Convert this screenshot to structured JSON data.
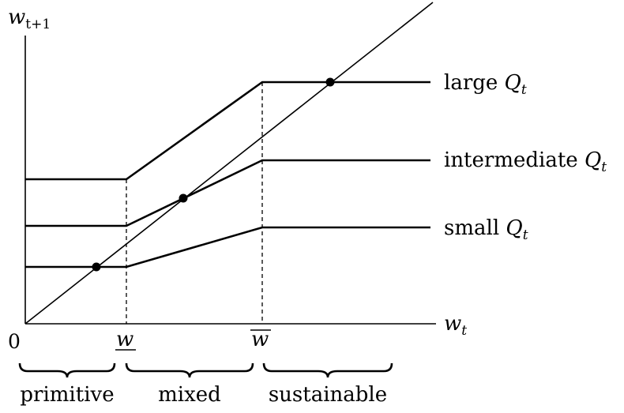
{
  "axes": {
    "y_label_var": "w",
    "y_label_sub": "t+1",
    "x_label_var": "w",
    "x_label_sub": "t",
    "origin": "0",
    "tick_low": "w",
    "tick_high": "w"
  },
  "curves": {
    "large": {
      "text": "large ",
      "q": "Q",
      "sub": "t"
    },
    "intermediate": {
      "text": "intermediate ",
      "q": "Q",
      "sub": "t"
    },
    "small": {
      "text": "small ",
      "q": "Q",
      "sub": "t"
    }
  },
  "regions": {
    "primitive": "primitive",
    "mixed": "mixed",
    "sustainable": "sustainable"
  }
}
